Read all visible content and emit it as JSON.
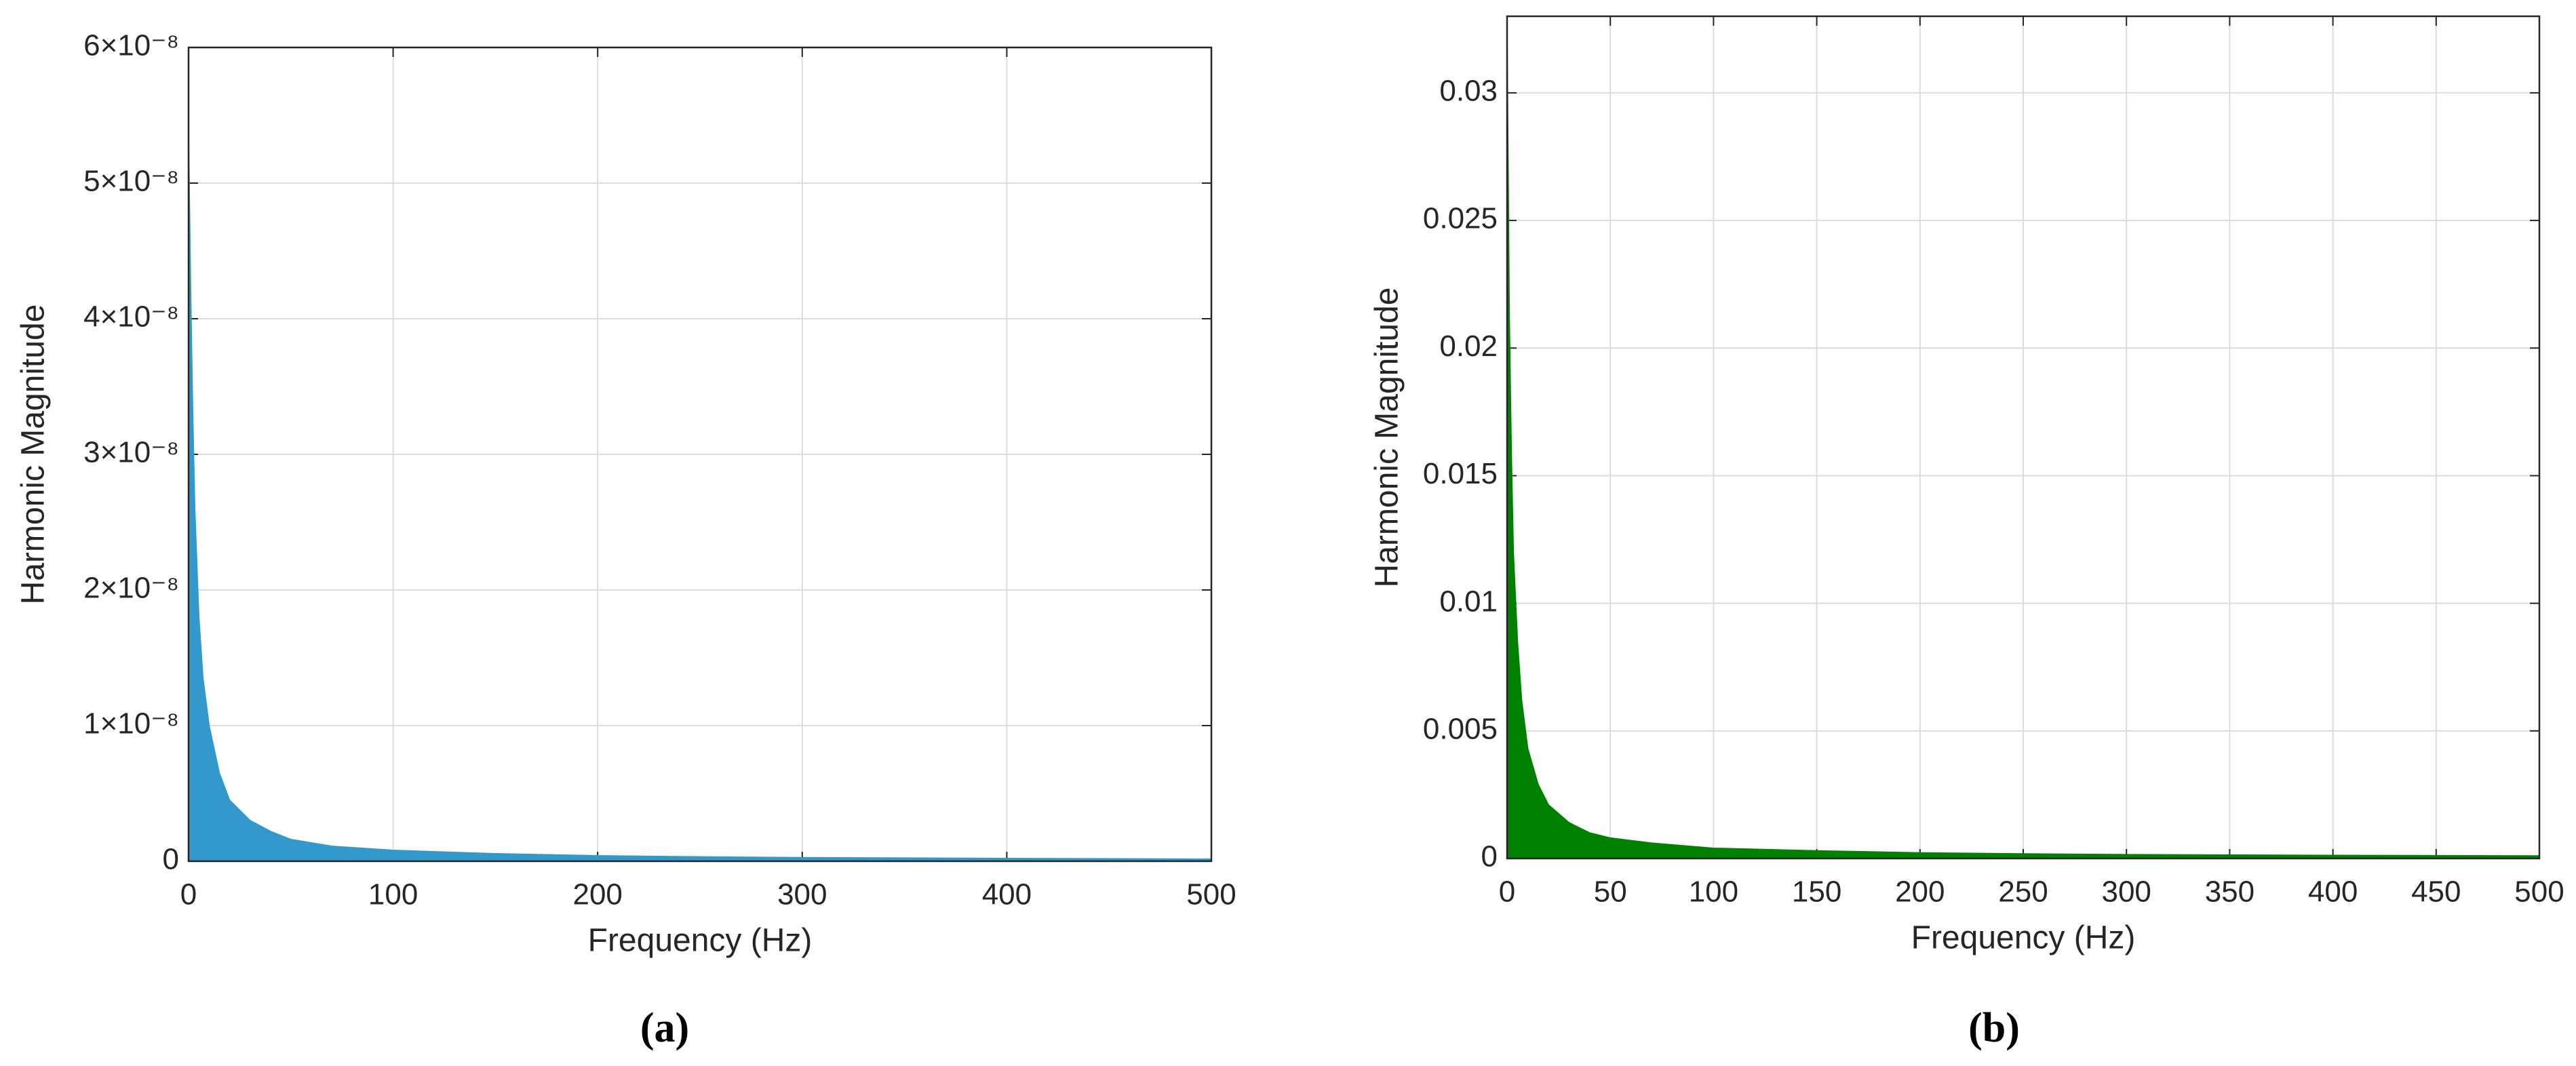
{
  "chart_data": [
    {
      "type": "area",
      "xlabel": "Frequency (Hz)",
      "ylabel": "Harmonic Magnitude",
      "caption": "(a)",
      "x": [
        0,
        1,
        2,
        3,
        5,
        7,
        10,
        15,
        20,
        30,
        40,
        50,
        70,
        100,
        150,
        200,
        250,
        300,
        400,
        500
      ],
      "values": [
        5.3e-08,
        4.2e-08,
        3.3e-08,
        2.6e-08,
        1.8e-08,
        1.35e-08,
        1e-08,
        6.5e-09,
        4.5e-09,
        3e-09,
        2.2e-09,
        1.6e-09,
        1.1e-09,
        8e-10,
        5.5e-10,
        4e-10,
        3.2e-10,
        2.6e-10,
        2e-10,
        1.5e-10
      ],
      "color": "#3399cc",
      "xlim": [
        0,
        500
      ],
      "xticks": [
        0,
        100,
        200,
        300,
        400,
        500
      ],
      "ylim": [
        0,
        6e-08
      ],
      "yticks": [
        0,
        {
          "value": 1e-08,
          "label": "1×10⁻⁸"
        },
        {
          "value": 2e-08,
          "label": "2×10⁻⁸"
        },
        {
          "value": 3e-08,
          "label": "3×10⁻⁸"
        },
        {
          "value": 4e-08,
          "label": "4×10⁻⁸"
        },
        {
          "value": 5e-08,
          "label": "5×10⁻⁸"
        },
        {
          "value": 6e-08,
          "label": "6×10⁻⁸"
        }
      ],
      "grid": true
    },
    {
      "type": "area",
      "xlabel": "Frequency (Hz)",
      "ylabel": "Harmonic Magnitude",
      "caption": "(b)",
      "x": [
        0,
        1,
        2,
        3,
        5,
        7,
        10,
        15,
        20,
        30,
        40,
        50,
        70,
        100,
        150,
        200,
        250,
        300,
        400,
        500
      ],
      "values": [
        0.032,
        0.0215,
        0.016,
        0.012,
        0.0085,
        0.0062,
        0.0043,
        0.0029,
        0.0021,
        0.0014,
        0.001,
        0.0008,
        0.0006,
        0.0004,
        0.0003,
        0.00022,
        0.00018,
        0.00015,
        0.00012,
        0.0001
      ],
      "color": "#008000",
      "xlim": [
        0,
        500
      ],
      "xticks": [
        0,
        50,
        100,
        150,
        200,
        250,
        300,
        350,
        400,
        450,
        500
      ],
      "ylim": [
        0,
        0.033
      ],
      "yticks": [
        0,
        0.005,
        0.01,
        0.015,
        0.02,
        0.025,
        0.03
      ],
      "grid": true
    }
  ]
}
